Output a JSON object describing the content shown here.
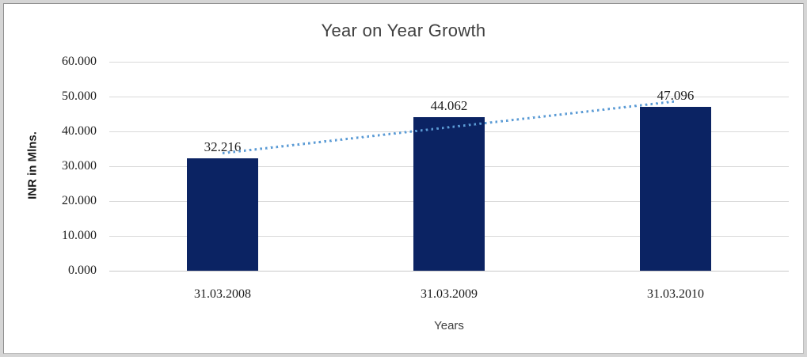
{
  "chart_data": {
    "type": "bar",
    "title": "Year on Year Growth",
    "xlabel": "Years",
    "ylabel": "INR in Mlns.",
    "categories": [
      "31.03.2008",
      "31.03.2009",
      "31.03.2010"
    ],
    "values": [
      32216,
      44062,
      47096
    ],
    "value_labels": [
      "32.216",
      "44.062",
      "47.096"
    ],
    "yticks": [
      {
        "value": 0,
        "label": "0.000"
      },
      {
        "value": 10000,
        "label": "10.000"
      },
      {
        "value": 20000,
        "label": "20.000"
      },
      {
        "value": 30000,
        "label": "30.000"
      },
      {
        "value": 40000,
        "label": "40.000"
      },
      {
        "value": 50000,
        "label": "50.000"
      },
      {
        "value": 60000,
        "label": "60.000"
      }
    ],
    "ylim": [
      0,
      60000
    ],
    "grid": true,
    "legend": "none",
    "trendline": {
      "type": "linear",
      "style": "dotted"
    },
    "colors": {
      "bar": "#0b2363",
      "trendline": "#5b9bd5",
      "gridline": "#d9d9d9",
      "title_text": "#404040",
      "label_text": "#1c1c1c"
    }
  }
}
